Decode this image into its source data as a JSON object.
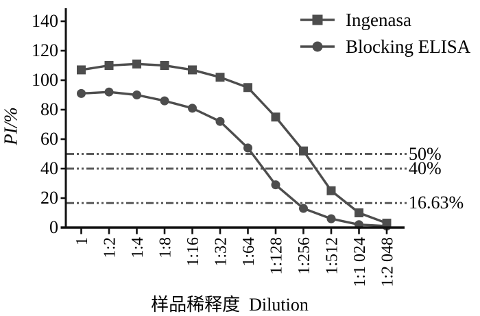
{
  "figure": {
    "background": "#ffffff"
  },
  "chart_data": {
    "type": "line",
    "title": "",
    "xlabel": "样品稀释度  Dilution",
    "ylabel": "PI/%",
    "categories": [
      "1",
      "1:2",
      "1:4",
      "1:8",
      "1:16",
      "1:32",
      "1:64",
      "1:128",
      "1:256",
      "1:512",
      "1:1 024",
      "1:2 048"
    ],
    "series": [
      {
        "name": "Ingenasa",
        "marker": "square",
        "values": [
          107,
          110,
          111,
          110,
          107,
          102,
          95,
          75,
          52,
          25,
          10,
          3
        ]
      },
      {
        "name": "Blocking ELISA",
        "marker": "circle",
        "values": [
          91,
          92,
          90,
          86,
          81,
          72,
          54,
          29,
          13,
          6,
          2,
          1
        ]
      }
    ],
    "reference_lines": [
      {
        "value": 50,
        "label": "50%"
      },
      {
        "value": 40,
        "label": "40%"
      },
      {
        "value": 16.63,
        "label": "16.63%"
      }
    ],
    "ylim": [
      0,
      140
    ],
    "yticks": [
      0,
      20,
      40,
      60,
      80,
      100,
      120,
      140
    ],
    "grid": false,
    "legend_position": "top-right",
    "colors": {
      "series": "#4d4d4d",
      "reference": "#5a5a5a",
      "axis": "#111111",
      "text": "#000000"
    }
  }
}
